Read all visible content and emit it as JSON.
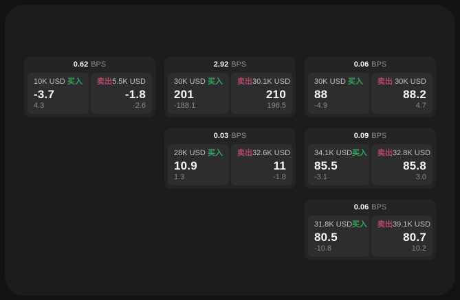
{
  "labels": {
    "buy": "买入",
    "sell": "卖出",
    "bps_unit": "BPS"
  },
  "colors": {
    "background": "#131314",
    "panel_bg": "#1c1c1e",
    "card_bg": "#242427",
    "tile_bg": "#2d2d30",
    "buy_green": "#36a55f",
    "sell_red": "#b24a5f",
    "price_white": "#f5f5f6",
    "muted_gray": "#8a8a8d"
  },
  "cards": [
    {
      "bps": "0.62",
      "col": 0,
      "row": 0,
      "buy": {
        "amount": "10K USD",
        "price": "-3.7",
        "change": "4.3"
      },
      "sell": {
        "amount": "5.5K USD",
        "price": "-1.8",
        "change": "-2.6"
      }
    },
    {
      "bps": "2.92",
      "col": 1,
      "row": 0,
      "buy": {
        "amount": "30K USD",
        "price": "201",
        "change": "-188.1"
      },
      "sell": {
        "amount": "30.1K USD",
        "price": "210",
        "change": "196.5"
      }
    },
    {
      "bps": "0.06",
      "col": 2,
      "row": 0,
      "buy": {
        "amount": "30K USD",
        "price": "88",
        "change": "-4.9"
      },
      "sell": {
        "amount": "30K USD",
        "price": "88.2",
        "change": "4.7"
      }
    },
    {
      "bps": "0.03",
      "col": 1,
      "row": 1,
      "buy": {
        "amount": "28K USD",
        "price": "10.9",
        "change": "1.3"
      },
      "sell": {
        "amount": "32.6K USD",
        "price": "11",
        "change": "-1.8"
      }
    },
    {
      "bps": "0.09",
      "col": 2,
      "row": 1,
      "buy": {
        "amount": "34.1K USD",
        "price": "85.5",
        "change": "-3.1"
      },
      "sell": {
        "amount": "32.8K USD",
        "price": "85.8",
        "change": "3.0"
      }
    },
    {
      "bps": "0.06",
      "col": 2,
      "row": 2,
      "buy": {
        "amount": "31.8K USD",
        "price": "80.5",
        "change": "-10.8"
      },
      "sell": {
        "amount": "39.1K USD",
        "price": "80.7",
        "change": "10.2"
      }
    }
  ]
}
